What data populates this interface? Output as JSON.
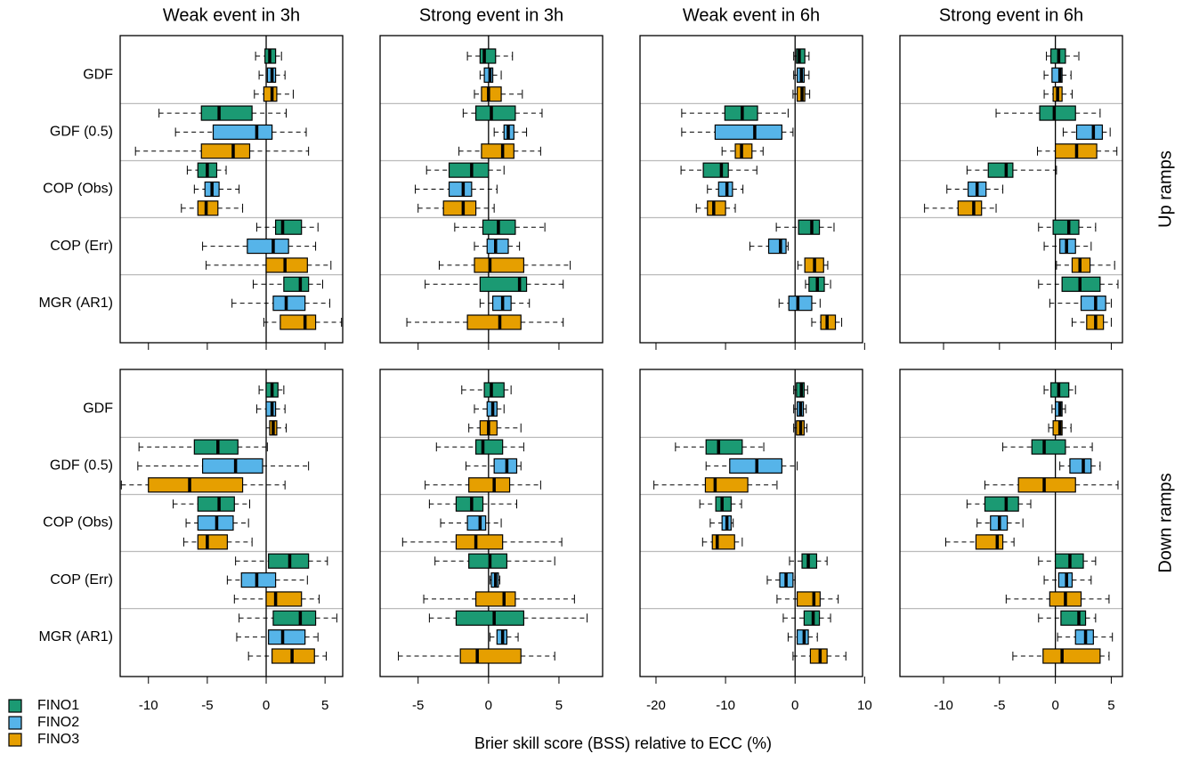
{
  "categories": [
    "GDF",
    "GDF (0.5)",
    "COP (Obs)",
    "COP (Err)",
    "MGR (AR1)"
  ],
  "legend": [
    {
      "name": "FINO1",
      "color": "#1b9a73"
    },
    {
      "name": "FINO2",
      "color": "#56b4e9"
    },
    {
      "name": "FINO3",
      "color": "#e69f00"
    }
  ],
  "xlabel": "Brier skill score (BSS) relative to ECC (%)",
  "chart_data": [
    {
      "type": "boxplot",
      "title": "Weak event in 3h",
      "xlim": [
        -12.4,
        6.5
      ],
      "xticks": [
        -10,
        -5,
        0,
        5
      ],
      "series": [
        {
          "values": [
            [
              -0.9,
              -0.1,
              0.3,
              0.8,
              1.3
            ],
            [
              -9.1,
              -5.5,
              -4.0,
              -1.2,
              1.7
            ],
            [
              -6.7,
              -5.8,
              -5.0,
              -4.2,
              -3.4
            ],
            [
              -0.8,
              0.8,
              1.4,
              3.0,
              4.4
            ],
            [
              -1.1,
              1.5,
              2.9,
              3.6,
              4.8
            ]
          ]
        },
        {
          "values": [
            [
              -0.6,
              0.1,
              0.5,
              0.8,
              1.6
            ],
            [
              -7.7,
              -4.5,
              -0.8,
              0.5,
              3.4
            ],
            [
              -6.1,
              -5.2,
              -4.6,
              -4.0,
              -2.3
            ],
            [
              -5.4,
              -1.6,
              0.6,
              1.9,
              4.2
            ],
            [
              -2.9,
              0.6,
              1.7,
              3.3,
              5.4
            ]
          ]
        },
        {
          "values": [
            [
              -1.0,
              -0.2,
              0.5,
              0.9,
              2.3
            ],
            [
              -11.1,
              -5.5,
              -2.8,
              -1.4,
              3.6
            ],
            [
              -7.2,
              -5.8,
              -5.1,
              -4.1,
              -2.0
            ],
            [
              -5.1,
              0.0,
              1.6,
              3.5,
              5.5
            ],
            [
              -0.2,
              1.2,
              3.3,
              4.2,
              6.4
            ]
          ]
        }
      ]
    },
    {
      "type": "boxplot",
      "title": "Strong event in 3h",
      "xlim": [
        -7.7,
        8.1
      ],
      "xticks": [
        -5,
        0,
        5
      ],
      "series": [
        {
          "values": [
            [
              -1.5,
              -0.6,
              -0.3,
              0.5,
              1.7
            ],
            [
              -1.8,
              -0.9,
              0.2,
              1.9,
              3.8
            ],
            [
              -4.4,
              -2.8,
              -1.2,
              0.0,
              1.1
            ],
            [
              -2.4,
              -0.4,
              0.7,
              1.9,
              4.0
            ],
            [
              -4.5,
              -0.6,
              2.2,
              2.7,
              5.3
            ]
          ]
        },
        {
          "values": [
            [
              -0.6,
              -0.3,
              0.1,
              0.3,
              0.9
            ],
            [
              0.4,
              1.1,
              1.4,
              1.8,
              2.7
            ],
            [
              -5.2,
              -2.8,
              -1.8,
              -1.2,
              0.6
            ],
            [
              -1.0,
              -0.1,
              0.5,
              1.4,
              2.2
            ],
            [
              -0.6,
              0.3,
              1.0,
              1.6,
              2.9
            ]
          ]
        },
        {
          "values": [
            [
              -1.0,
              -0.5,
              0.0,
              0.9,
              2.4
            ],
            [
              -2.1,
              -0.5,
              1.0,
              1.8,
              3.7
            ],
            [
              -5.0,
              -3.2,
              -1.8,
              -0.9,
              0.4
            ],
            [
              -3.5,
              -1.0,
              0.1,
              2.5,
              5.8
            ],
            [
              -5.8,
              -1.5,
              0.8,
              2.3,
              5.3
            ]
          ]
        }
      ]
    },
    {
      "type": "boxplot",
      "title": "Weak event in 6h",
      "xlim": [
        -22.3,
        9.7
      ],
      "xticks": [
        -20,
        -10,
        0,
        10
      ],
      "series": [
        {
          "values": [
            [
              -0.2,
              0.2,
              0.6,
              1.4,
              2.0
            ],
            [
              -16.3,
              -10.1,
              -7.6,
              -5.4,
              -1.0
            ],
            [
              -16.4,
              -13.2,
              -10.6,
              -9.6,
              -5.5
            ],
            [
              -2.7,
              0.5,
              2.4,
              3.5,
              5.6
            ],
            [
              1.5,
              2.0,
              3.2,
              4.2,
              5.1
            ]
          ]
        },
        {
          "values": [
            [
              -0.2,
              0.3,
              0.9,
              1.3,
              2.0
            ],
            [
              -16.3,
              -11.5,
              -5.8,
              -1.9,
              -0.3
            ],
            [
              -12.6,
              -11.0,
              -9.8,
              -9.0,
              -7.5
            ],
            [
              -6.5,
              -3.8,
              -2.1,
              -1.3,
              -1.0
            ],
            [
              -2.3,
              -0.9,
              0.4,
              2.4,
              3.6
            ]
          ]
        },
        {
          "values": [
            [
              -0.3,
              0.3,
              1.0,
              1.4,
              2.1
            ],
            [
              -10.5,
              -8.6,
              -7.7,
              -6.2,
              -4.6
            ],
            [
              -14.2,
              -12.6,
              -11.7,
              -10.0,
              -8.6
            ],
            [
              0.4,
              1.4,
              2.8,
              4.1,
              4.7
            ],
            [
              2.4,
              3.7,
              4.6,
              5.8,
              6.7
            ]
          ]
        }
      ]
    },
    {
      "type": "boxplot",
      "title": "Strong event in 6h",
      "side_label": "Up ramps",
      "xlim": [
        -13.9,
        6.0
      ],
      "xticks": [
        -10,
        -5,
        0,
        5
      ],
      "series": [
        {
          "values": [
            [
              -0.8,
              -0.4,
              0.3,
              0.9,
              2.1
            ],
            [
              -5.3,
              -1.4,
              -0.1,
              1.8,
              4.0
            ],
            [
              -7.9,
              -6.0,
              -4.4,
              -3.8,
              0.1
            ],
            [
              -1.5,
              -0.2,
              1.2,
              2.1,
              3.6
            ],
            [
              -1.5,
              0.6,
              2.2,
              4.0,
              5.6
            ]
          ]
        },
        {
          "values": [
            [
              -1.0,
              -0.3,
              0.4,
              0.6,
              1.4
            ],
            [
              0.7,
              1.9,
              3.4,
              4.2,
              4.9
            ],
            [
              -9.7,
              -7.8,
              -7.0,
              -6.2,
              -4.7
            ],
            [
              -1.0,
              0.4,
              1.0,
              1.8,
              3.2
            ],
            [
              -0.5,
              2.3,
              3.6,
              4.5,
              5.0
            ]
          ]
        },
        {
          "values": [
            [
              -1.0,
              -0.2,
              0.2,
              0.6,
              1.5
            ],
            [
              -1.6,
              0.0,
              1.9,
              3.7,
              5.5
            ],
            [
              -11.7,
              -8.7,
              -7.3,
              -6.6,
              -5.3
            ],
            [
              0.1,
              1.5,
              2.2,
              3.1,
              5.3
            ],
            [
              1.5,
              2.8,
              3.6,
              4.3,
              5.0
            ]
          ]
        }
      ]
    },
    {
      "type": "boxplot",
      "xlim": [
        -12.4,
        6.5
      ],
      "xticks": [
        -10,
        -5,
        0,
        5
      ],
      "series": [
        {
          "values": [
            [
              -0.6,
              0.0,
              0.5,
              1.0,
              1.5
            ],
            [
              -10.8,
              -6.1,
              -4.1,
              -2.4,
              0.1
            ],
            [
              -7.9,
              -5.8,
              -4.0,
              -2.7,
              -1.4
            ],
            [
              -2.6,
              0.2,
              2.0,
              3.6,
              5.2
            ],
            [
              -2.3,
              0.6,
              2.9,
              4.2,
              6.0
            ]
          ]
        },
        {
          "values": [
            [
              -0.8,
              0.0,
              0.5,
              0.8,
              1.6
            ],
            [
              -10.9,
              -5.4,
              -2.6,
              -0.3,
              3.6
            ],
            [
              -6.8,
              -5.8,
              -4.2,
              -2.8,
              -1.5
            ],
            [
              -3.3,
              -2.1,
              -0.8,
              0.8,
              3.5
            ],
            [
              -2.5,
              0.2,
              1.4,
              3.3,
              4.4
            ]
          ]
        },
        {
          "values": [
            [
              0.0,
              0.3,
              0.6,
              0.9,
              1.7
            ],
            [
              -12.3,
              -10.0,
              -6.5,
              -2.0,
              1.6
            ],
            [
              -7.0,
              -5.8,
              -5.0,
              -3.3,
              -1.2
            ],
            [
              -2.7,
              0.0,
              0.8,
              3.0,
              4.5
            ],
            [
              -1.5,
              0.5,
              2.2,
              4.1,
              5.1
            ]
          ]
        }
      ]
    },
    {
      "type": "boxplot",
      "xlim": [
        -7.7,
        8.1
      ],
      "xticks": [
        -5,
        0,
        5
      ],
      "series": [
        {
          "values": [
            [
              -1.9,
              -0.3,
              0.2,
              1.1,
              1.6
            ],
            [
              -3.7,
              -0.9,
              -0.4,
              1.0,
              2.5
            ],
            [
              -4.2,
              -2.3,
              -1.2,
              -0.4,
              2.0
            ],
            [
              -3.8,
              -1.4,
              0.1,
              1.3,
              4.7
            ],
            [
              -4.2,
              -2.3,
              0.4,
              2.5,
              7.0
            ]
          ]
        },
        {
          "values": [
            [
              -1.0,
              -0.1,
              0.3,
              0.6,
              1.1
            ],
            [
              -1.6,
              0.4,
              1.3,
              2.0,
              2.3
            ],
            [
              -3.4,
              -1.5,
              -0.6,
              -0.2,
              0.9
            ],
            [
              0.1,
              0.2,
              0.5,
              0.7,
              0.8
            ],
            [
              0.1,
              0.6,
              1.0,
              1.3,
              2.1
            ]
          ]
        },
        {
          "values": [
            [
              -1.4,
              -0.6,
              0.0,
              0.6,
              2.3
            ],
            [
              -4.5,
              -1.4,
              0.4,
              1.5,
              3.7
            ],
            [
              -6.1,
              -2.3,
              -0.9,
              1.0,
              5.2
            ],
            [
              -4.6,
              -0.9,
              1.1,
              1.9,
              6.1
            ],
            [
              -6.4,
              -2.0,
              -0.8,
              2.3,
              4.7
            ]
          ]
        }
      ]
    },
    {
      "type": "boxplot",
      "xlim": [
        -22.3,
        9.7
      ],
      "xticks": [
        -20,
        -10,
        0,
        10
      ],
      "series": [
        {
          "values": [
            [
              -0.2,
              0.2,
              0.9,
              1.3,
              1.8
            ],
            [
              -17.2,
              -12.8,
              -11.0,
              -7.6,
              -4.5
            ],
            [
              -13.7,
              -11.4,
              -10.5,
              -9.2,
              -7.7
            ],
            [
              -0.8,
              1.0,
              1.9,
              3.1,
              4.6
            ],
            [
              -1.7,
              1.3,
              2.6,
              3.5,
              5.1
            ]
          ]
        },
        {
          "values": [
            [
              -0.2,
              0.3,
              0.8,
              1.2,
              1.6
            ],
            [
              -12.8,
              -9.4,
              -5.5,
              -1.9,
              0.3
            ],
            [
              -12.2,
              -10.5,
              -9.8,
              -9.2,
              -8.9
            ],
            [
              -4.0,
              -2.2,
              -1.3,
              -0.3,
              0.0
            ],
            [
              -1.0,
              0.3,
              1.3,
              1.9,
              3.2
            ]
          ]
        },
        {
          "values": [
            [
              -0.2,
              0.2,
              0.8,
              1.3,
              1.7
            ],
            [
              -20.3,
              -12.9,
              -11.5,
              -6.8,
              -2.6
            ],
            [
              -13.3,
              -11.9,
              -11.2,
              -8.7,
              -7.6
            ],
            [
              -2.6,
              0.3,
              2.7,
              3.6,
              6.2
            ],
            [
              -0.3,
              2.2,
              3.6,
              4.6,
              7.3
            ]
          ]
        }
      ]
    },
    {
      "type": "boxplot",
      "side_label": "Down ramps",
      "xlim": [
        -13.9,
        6.0
      ],
      "xticks": [
        -10,
        -5,
        0,
        5
      ],
      "series": [
        {
          "values": [
            [
              -1.0,
              -0.4,
              0.3,
              1.2,
              1.8
            ],
            [
              -4.7,
              -2.1,
              -1.0,
              0.9,
              3.3
            ],
            [
              -7.9,
              -6.3,
              -4.4,
              -3.3,
              -2.2
            ],
            [
              -1.5,
              0.0,
              1.3,
              2.5,
              3.6
            ],
            [
              -1.5,
              0.5,
              2.1,
              2.7,
              3.6
            ]
          ]
        },
        {
          "values": [
            [
              -0.3,
              0.0,
              0.4,
              0.6,
              0.9
            ],
            [
              0.4,
              1.3,
              2.5,
              3.2,
              4.0
            ],
            [
              -7.0,
              -5.8,
              -5.0,
              -4.3,
              -2.9
            ],
            [
              -1.0,
              0.3,
              1.0,
              1.5,
              3.2
            ],
            [
              0.2,
              1.8,
              2.7,
              3.4,
              5.1
            ]
          ]
        },
        {
          "values": [
            [
              -0.6,
              -0.2,
              0.4,
              0.6,
              1.4
            ],
            [
              -6.3,
              -3.3,
              -1.0,
              1.8,
              5.6
            ],
            [
              -9.8,
              -7.1,
              -5.2,
              -4.7,
              -3.7
            ],
            [
              -4.4,
              -0.5,
              0.9,
              2.3,
              4.8
            ],
            [
              -3.8,
              -1.1,
              0.6,
              4.0,
              4.8
            ]
          ]
        }
      ]
    }
  ]
}
